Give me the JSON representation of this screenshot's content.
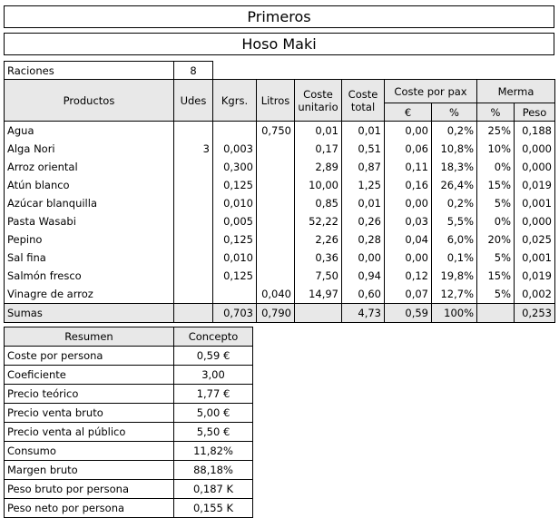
{
  "title1": "Primeros",
  "title2": "Hoso Maki",
  "raciones": {
    "label": "Raciones",
    "value": "8"
  },
  "headers": {
    "productos": "Productos",
    "udes": "Udes",
    "kgrs": "Kgrs.",
    "litros": "Litros",
    "coste_unitario_1": "Coste",
    "coste_unitario_2": "unitario",
    "coste_total_1": "Coste",
    "coste_total_2": "total",
    "coste_pax": "Coste por pax",
    "merma": "Merma",
    "euro": "€",
    "pct": "%",
    "merma_pct": "%",
    "peso": "Peso"
  },
  "rows": [
    {
      "producto": "Agua",
      "udes": "",
      "kgrs": "",
      "litros": "0,750",
      "cu": "0,01",
      "ct": "0,01",
      "pe": "0,00",
      "pp": "0,2%",
      "mp": "25%",
      "peso": "0,188"
    },
    {
      "producto": "Alga Nori",
      "udes": "3",
      "kgrs": "0,003",
      "litros": "",
      "cu": "0,17",
      "ct": "0,51",
      "pe": "0,06",
      "pp": "10,8%",
      "mp": "10%",
      "peso": "0,000"
    },
    {
      "producto": "Arroz oriental",
      "udes": "",
      "kgrs": "0,300",
      "litros": "",
      "cu": "2,89",
      "ct": "0,87",
      "pe": "0,11",
      "pp": "18,3%",
      "mp": "0%",
      "peso": "0,000"
    },
    {
      "producto": "Atún blanco",
      "udes": "",
      "kgrs": "0,125",
      "litros": "",
      "cu": "10,00",
      "ct": "1,25",
      "pe": "0,16",
      "pp": "26,4%",
      "mp": "15%",
      "peso": "0,019"
    },
    {
      "producto": "Azúcar blanquilla",
      "udes": "",
      "kgrs": "0,010",
      "litros": "",
      "cu": "0,85",
      "ct": "0,01",
      "pe": "0,00",
      "pp": "0,2%",
      "mp": "5%",
      "peso": "0,001"
    },
    {
      "producto": "Pasta Wasabi",
      "udes": "",
      "kgrs": "0,005",
      "litros": "",
      "cu": "52,22",
      "ct": "0,26",
      "pe": "0,03",
      "pp": "5,5%",
      "mp": "0%",
      "peso": "0,000"
    },
    {
      "producto": "Pepino",
      "udes": "",
      "kgrs": "0,125",
      "litros": "",
      "cu": "2,26",
      "ct": "0,28",
      "pe": "0,04",
      "pp": "6,0%",
      "mp": "20%",
      "peso": "0,025"
    },
    {
      "producto": "Sal fina",
      "udes": "",
      "kgrs": "0,010",
      "litros": "",
      "cu": "0,36",
      "ct": "0,00",
      "pe": "0,00",
      "pp": "0,1%",
      "mp": "5%",
      "peso": "0,001"
    },
    {
      "producto": "Salmón fresco",
      "udes": "",
      "kgrs": "0,125",
      "litros": "",
      "cu": "7,50",
      "ct": "0,94",
      "pe": "0,12",
      "pp": "19,8%",
      "mp": "15%",
      "peso": "0,019"
    },
    {
      "producto": "Vinagre de arroz",
      "udes": "",
      "kgrs": "",
      "litros": "0,040",
      "cu": "14,97",
      "ct": "0,60",
      "pe": "0,07",
      "pp": "12,7%",
      "mp": "5%",
      "peso": "0,002"
    }
  ],
  "sumas": {
    "label": "Sumas",
    "kgrs": "0,703",
    "litros": "0,790",
    "ct": "4,73",
    "pe": "0,59",
    "pp": "100%",
    "peso": "0,253"
  },
  "resumen": {
    "header_label": "Resumen",
    "header_value": "Concepto",
    "items": [
      {
        "label": "Coste por persona",
        "value": "0,59 €"
      },
      {
        "label": "Coeficiente",
        "value": "3,00"
      },
      {
        "label": "Precio teórico",
        "value": "1,77 €"
      },
      {
        "label": "Precio venta bruto",
        "value": "5,00 €"
      },
      {
        "label": "Precio venta al público",
        "value": "5,50 €"
      },
      {
        "label": "Consumo",
        "value": "11,82%"
      },
      {
        "label": "Margen bruto",
        "value": "88,18%"
      },
      {
        "label": "Peso bruto por persona",
        "value": "0,187 K"
      },
      {
        "label": "Peso neto por persona",
        "value": "0,155 K"
      }
    ]
  }
}
